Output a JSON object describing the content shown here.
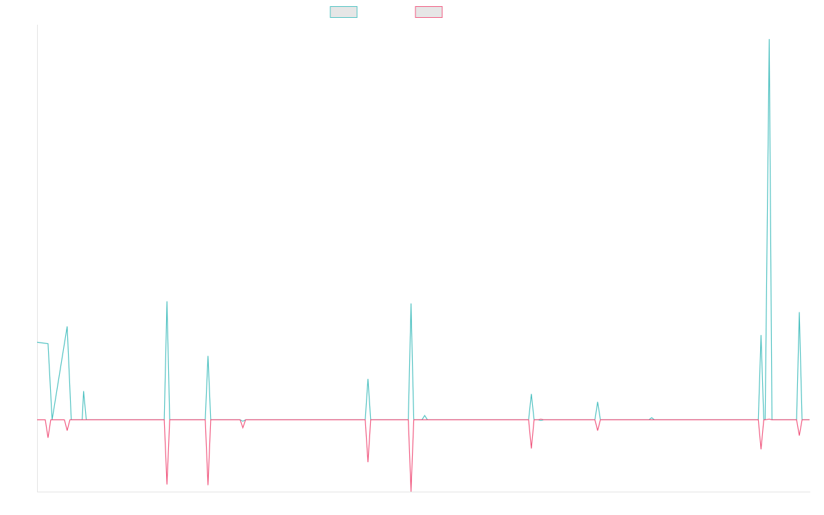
{
  "chart_data": {
    "type": "line",
    "title": "",
    "xlabel": "",
    "ylabel": "",
    "grid": false,
    "legend_position": "top-center",
    "ylim": [
      -100,
      550
    ],
    "series": [
      {
        "color": "#4bc0c0",
        "fill": "#e6e6e6",
        "points": [
          [
            0,
            108
          ],
          [
            16,
            106
          ],
          [
            22,
            0
          ],
          [
            44,
            130
          ],
          [
            50,
            0
          ],
          [
            66,
            0
          ],
          [
            68,
            40
          ],
          [
            72,
            0
          ],
          [
            186,
            0
          ],
          [
            190,
            165
          ],
          [
            194,
            0
          ],
          [
            246,
            0
          ],
          [
            250,
            89
          ],
          [
            254,
            0
          ],
          [
            297,
            0
          ],
          [
            301,
            -2
          ],
          [
            305,
            0
          ],
          [
            480,
            0
          ],
          [
            484,
            57
          ],
          [
            488,
            0
          ],
          [
            543,
            0
          ],
          [
            547,
            162
          ],
          [
            551,
            0
          ],
          [
            563,
            0
          ],
          [
            567,
            6
          ],
          [
            571,
            0
          ],
          [
            719,
            0
          ],
          [
            723,
            36
          ],
          [
            727,
            0
          ],
          [
            733,
            0
          ],
          [
            737,
            -1
          ],
          [
            741,
            0
          ],
          [
            816,
            0
          ],
          [
            820,
            25
          ],
          [
            824,
            0
          ],
          [
            895,
            0
          ],
          [
            899,
            3
          ],
          [
            903,
            0
          ],
          [
            1055,
            0
          ],
          [
            1059,
            118
          ],
          [
            1063,
            0
          ],
          [
            1065,
            0
          ],
          [
            1071,
            530
          ],
          [
            1075,
            0
          ],
          [
            1111,
            0
          ],
          [
            1115,
            150
          ],
          [
            1119,
            0
          ],
          [
            1130,
            0
          ]
        ]
      },
      {
        "color": "#f0557d",
        "fill": "#e6e6e6",
        "points": [
          [
            0,
            0
          ],
          [
            12,
            0
          ],
          [
            16,
            -25
          ],
          [
            20,
            0
          ],
          [
            40,
            0
          ],
          [
            44,
            -15
          ],
          [
            48,
            0
          ],
          [
            66,
            0
          ],
          [
            68,
            0
          ],
          [
            72,
            0
          ],
          [
            186,
            0
          ],
          [
            190,
            -90
          ],
          [
            194,
            0
          ],
          [
            246,
            0
          ],
          [
            250,
            -91
          ],
          [
            254,
            0
          ],
          [
            297,
            0
          ],
          [
            301,
            -11
          ],
          [
            305,
            0
          ],
          [
            480,
            0
          ],
          [
            484,
            -59
          ],
          [
            488,
            0
          ],
          [
            543,
            0
          ],
          [
            547,
            -100
          ],
          [
            551,
            0
          ],
          [
            719,
            0
          ],
          [
            723,
            -40
          ],
          [
            727,
            0
          ],
          [
            733,
            0
          ],
          [
            737,
            1
          ],
          [
            741,
            0
          ],
          [
            816,
            0
          ],
          [
            820,
            -15
          ],
          [
            824,
            0
          ],
          [
            1055,
            0
          ],
          [
            1059,
            -41
          ],
          [
            1063,
            0
          ],
          [
            1065,
            0
          ],
          [
            1071,
            1
          ],
          [
            1075,
            0
          ],
          [
            1111,
            0
          ],
          [
            1115,
            -22
          ],
          [
            1119,
            0
          ],
          [
            1130,
            0
          ]
        ]
      }
    ]
  }
}
